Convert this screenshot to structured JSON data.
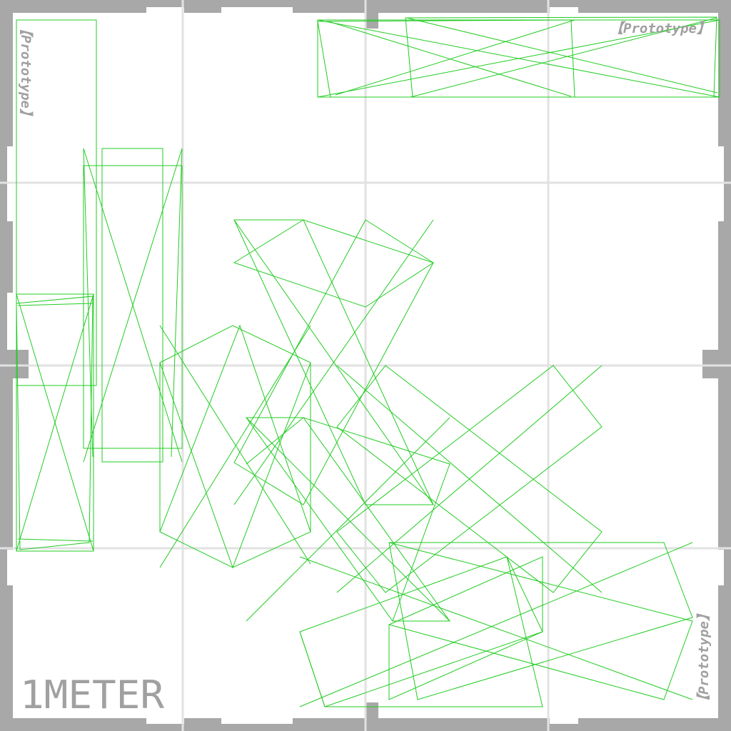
{
  "texture": {
    "frame_color": "#a8a8a8",
    "grid_color": "#e2e2e2",
    "background_color": "#ffffff",
    "wire_color": "#22cc22",
    "text_color": "#a0a0a0"
  },
  "labels": {
    "prototype_top_right": "【Prototype】",
    "prototype_left": "【Prototype】",
    "prototype_bottom_right": "【Prototype】",
    "meter": "1METER"
  }
}
